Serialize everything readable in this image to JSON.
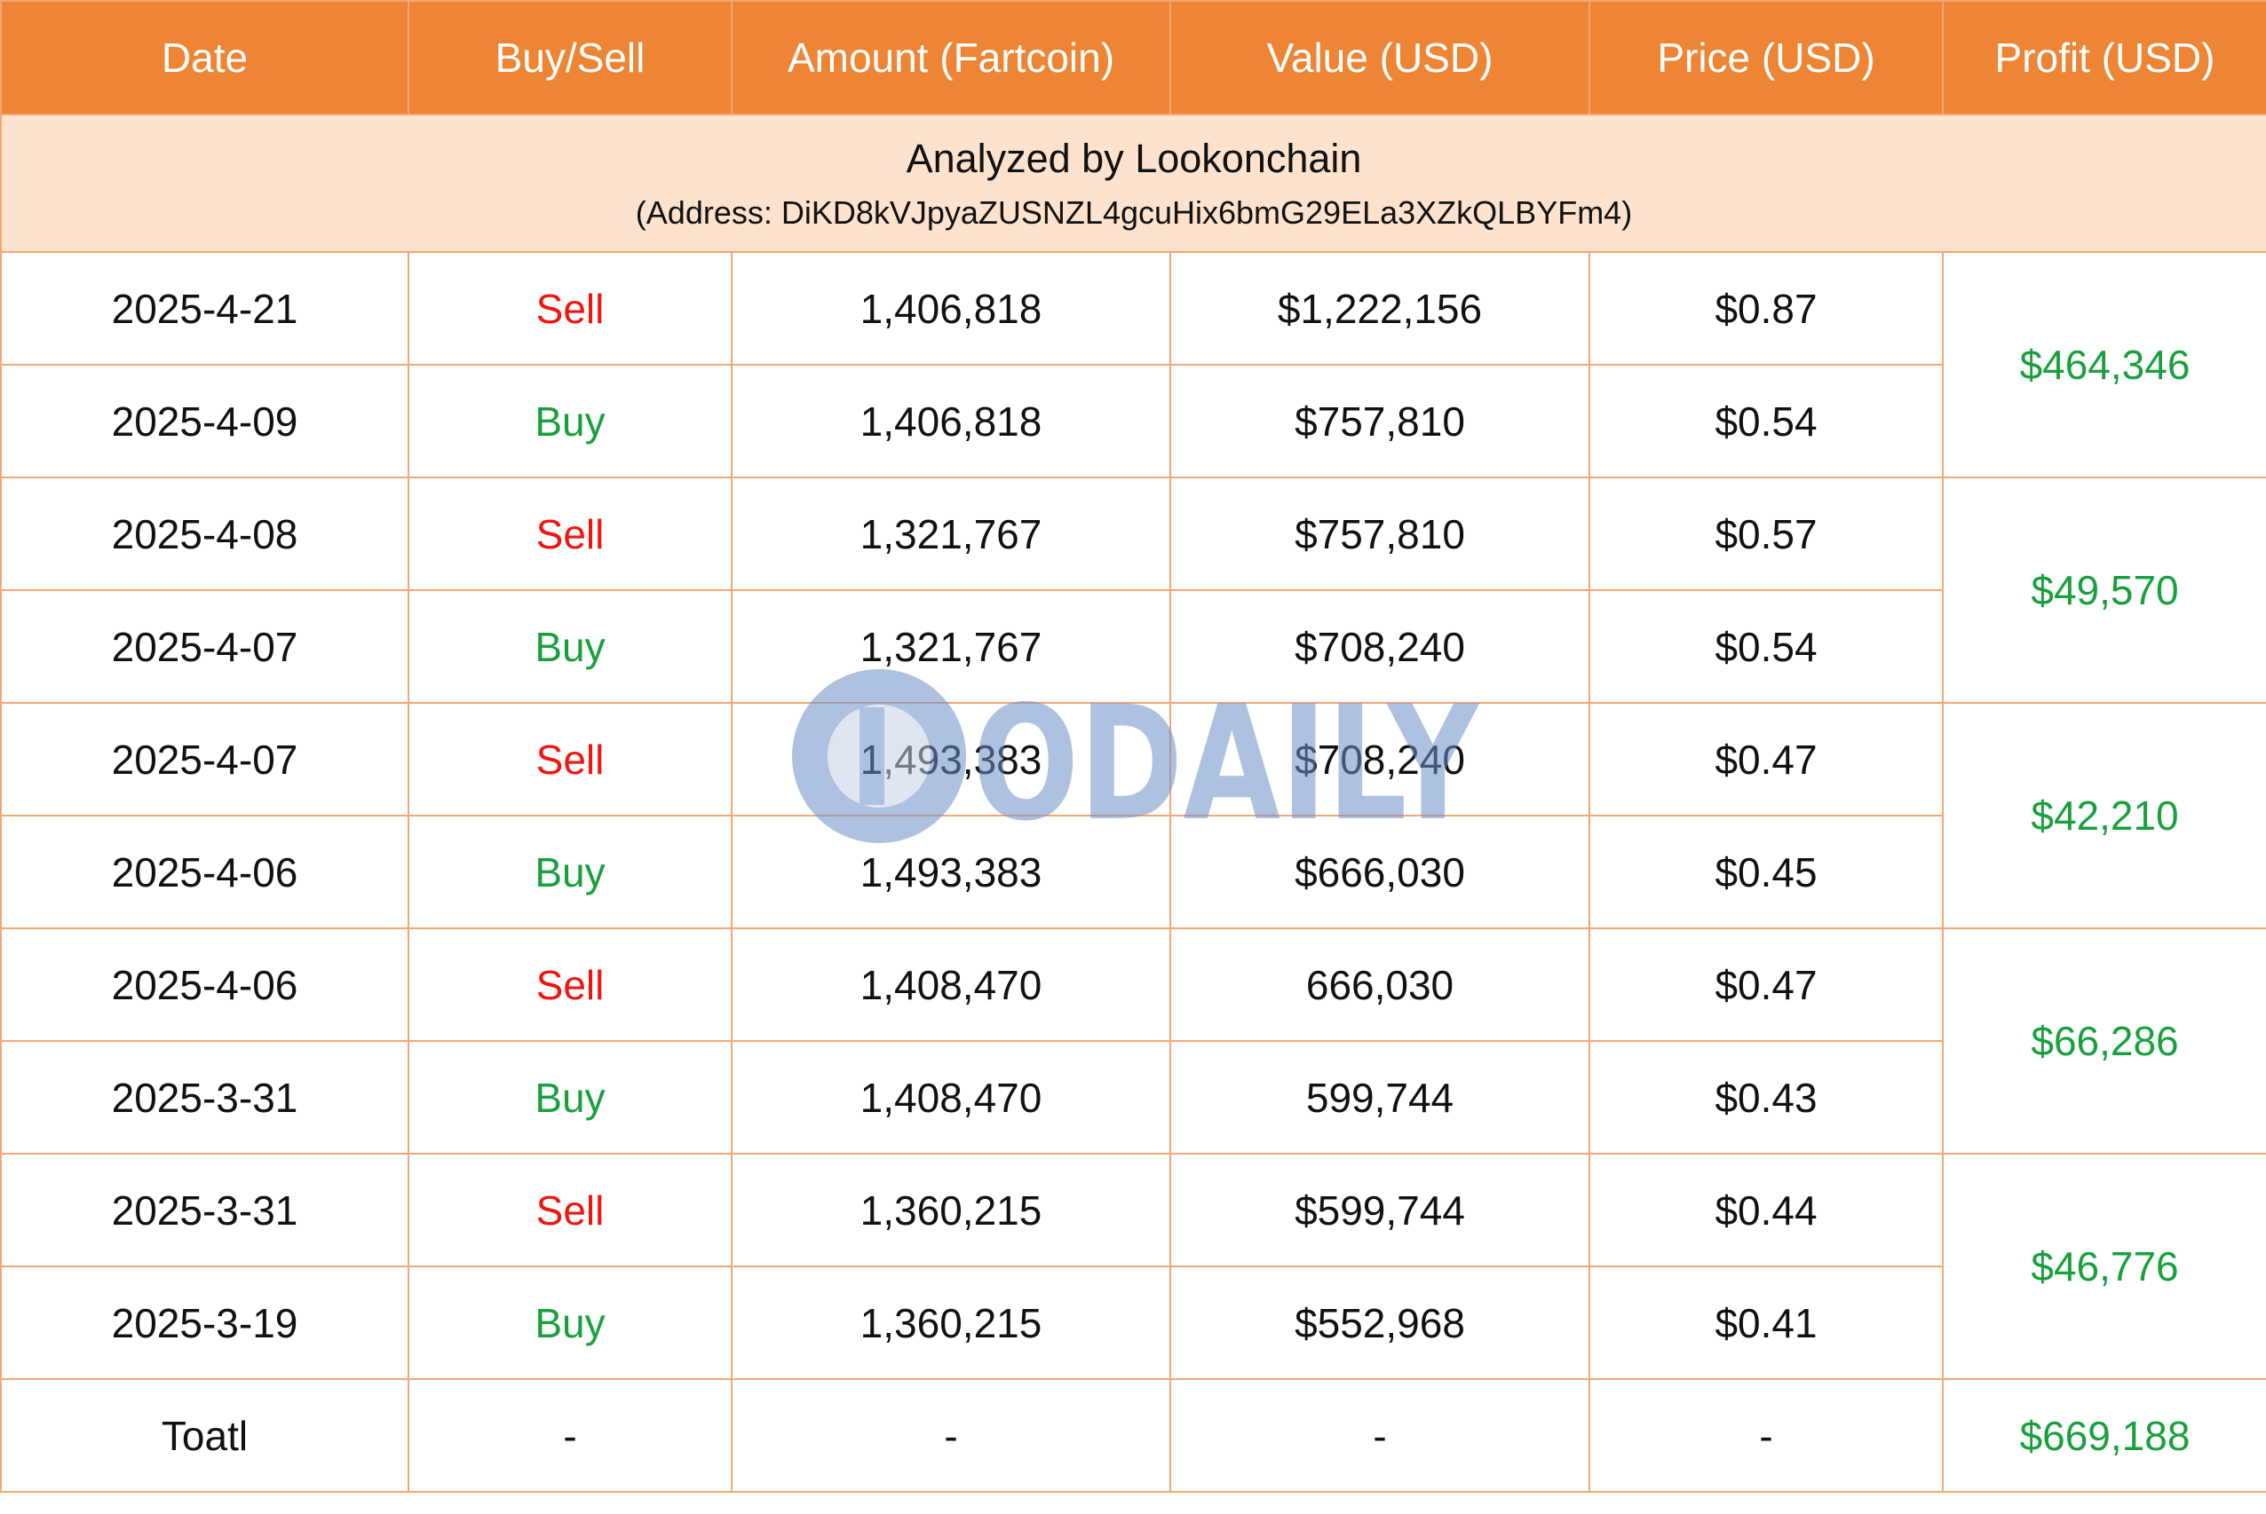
{
  "header": [
    "Date",
    "Buy/Sell",
    "Amount (Fartcoin)",
    "Value (USD)",
    "Price (USD)",
    "Profit (USD)"
  ],
  "banner": {
    "title": "Analyzed by Lookonchain",
    "subtitle": "(Address: DiKD8kVJpyaZUSNZL4gcuHix6bmG29ELa3XZkQLBYFm4)"
  },
  "rows": [
    {
      "date": "2025-4-21",
      "side": "Sell",
      "amount": "1,406,818",
      "value": "$1,222,156",
      "price": "$0.87"
    },
    {
      "date": "2025-4-09",
      "side": "Buy",
      "amount": "1,406,818",
      "value": "$757,810",
      "price": "$0.54"
    },
    {
      "date": "2025-4-08",
      "side": "Sell",
      "amount": "1,321,767",
      "value": "$757,810",
      "price": "$0.57"
    },
    {
      "date": "2025-4-07",
      "side": "Buy",
      "amount": "1,321,767",
      "value": "$708,240",
      "price": "$0.54"
    },
    {
      "date": "2025-4-07",
      "side": "Sell",
      "amount": "1,493,383",
      "value": "$708,240",
      "price": "$0.47"
    },
    {
      "date": "2025-4-06",
      "side": "Buy",
      "amount": "1,493,383",
      "value": "$666,030",
      "price": "$0.45"
    },
    {
      "date": "2025-4-06",
      "side": "Sell",
      "amount": "1,408,470",
      "value": "666,030",
      "price": "$0.47"
    },
    {
      "date": "2025-3-31",
      "side": "Buy",
      "amount": "1,408,470",
      "value": "599,744",
      "price": "$0.43"
    },
    {
      "date": "2025-3-31",
      "side": "Sell",
      "amount": "1,360,215",
      "value": "$599,744",
      "price": "$0.44"
    },
    {
      "date": "2025-3-19",
      "side": "Buy",
      "amount": "1,360,215",
      "value": "$552,968",
      "price": "$0.41"
    }
  ],
  "profits": [
    "$464,346",
    "$49,570",
    "$42,210",
    "$66,286",
    "$46,776"
  ],
  "total": {
    "label": "Toatl",
    "side": "-",
    "amount": "-",
    "value": "-",
    "price": "-",
    "profit": "$669,188"
  },
  "watermark": {
    "text": "ODAILY",
    "icon": "odaily-logo-icon"
  },
  "colors": {
    "header_bg": "#ed8534",
    "banner_bg": "#fde2cd",
    "border": "#f2a776",
    "sell": "#f0150f",
    "buy": "#19a03d"
  }
}
